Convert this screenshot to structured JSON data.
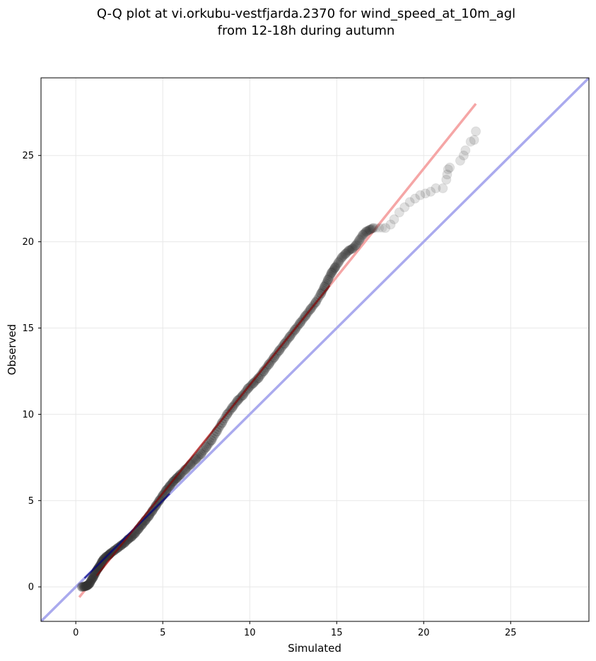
{
  "chart_data": {
    "type": "scatter",
    "title": "Q-Q plot at vi.orkubu-vestfjarda.2370 for wind_speed_at_10m_agl",
    "subtitle": "from 12-18h during autumn",
    "xlabel": "Simulated",
    "ylabel": "Observed",
    "xlim": [
      -2,
      29.5
    ],
    "ylim": [
      -2,
      29.5
    ],
    "xticks": [
      0,
      5,
      10,
      15,
      20,
      25
    ],
    "yticks": [
      0,
      5,
      10,
      15,
      20,
      25
    ],
    "grid": true,
    "legend": "none",
    "colors": {
      "points": "#333333",
      "identity_line": "#aaaaee",
      "fit_line": "#f5a6a6",
      "fit_line_dark": "#8b0000",
      "identity_line_dark": "#000080"
    },
    "identity_line": {
      "x": [
        -2,
        29.5
      ],
      "y": [
        -2,
        29.5
      ]
    },
    "fit_line": {
      "x": [
        0.2,
        23.0
      ],
      "y": [
        -0.6,
        28.0
      ]
    },
    "series": [
      {
        "values": [
          {
            "x": 0.35,
            "y": 0.0
          },
          {
            "x": 0.5,
            "y": 0.02
          },
          {
            "x": 0.6,
            "y": 0.05
          },
          {
            "x": 0.7,
            "y": 0.1
          },
          {
            "x": 0.8,
            "y": 0.2
          },
          {
            "x": 0.9,
            "y": 0.4
          },
          {
            "x": 1.0,
            "y": 0.55
          },
          {
            "x": 1.1,
            "y": 0.75
          },
          {
            "x": 1.2,
            "y": 0.95
          },
          {
            "x": 1.3,
            "y": 1.1
          },
          {
            "x": 1.4,
            "y": 1.25
          },
          {
            "x": 1.5,
            "y": 1.45
          },
          {
            "x": 1.6,
            "y": 1.6
          },
          {
            "x": 1.75,
            "y": 1.75
          },
          {
            "x": 1.9,
            "y": 1.85
          },
          {
            "x": 2.0,
            "y": 1.95
          },
          {
            "x": 2.2,
            "y": 2.1
          },
          {
            "x": 2.4,
            "y": 2.25
          },
          {
            "x": 2.6,
            "y": 2.4
          },
          {
            "x": 2.8,
            "y": 2.55
          },
          {
            "x": 3.0,
            "y": 2.75
          },
          {
            "x": 3.2,
            "y": 2.9
          },
          {
            "x": 3.4,
            "y": 3.1
          },
          {
            "x": 3.6,
            "y": 3.35
          },
          {
            "x": 3.8,
            "y": 3.6
          },
          {
            "x": 4.0,
            "y": 3.85
          },
          {
            "x": 4.2,
            "y": 4.1
          },
          {
            "x": 4.4,
            "y": 4.4
          },
          {
            "x": 4.6,
            "y": 4.7
          },
          {
            "x": 4.8,
            "y": 5.0
          },
          {
            "x": 5.0,
            "y": 5.3
          },
          {
            "x": 5.2,
            "y": 5.6
          },
          {
            "x": 5.4,
            "y": 5.85
          },
          {
            "x": 5.6,
            "y": 6.1
          },
          {
            "x": 5.8,
            "y": 6.3
          },
          {
            "x": 6.0,
            "y": 6.5
          },
          {
            "x": 6.3,
            "y": 6.8
          },
          {
            "x": 6.6,
            "y": 7.1
          },
          {
            "x": 6.9,
            "y": 7.4
          },
          {
            "x": 7.2,
            "y": 7.7
          },
          {
            "x": 7.5,
            "y": 8.1
          },
          {
            "x": 7.8,
            "y": 8.5
          },
          {
            "x": 8.1,
            "y": 9.0
          },
          {
            "x": 8.4,
            "y": 9.5
          },
          {
            "x": 8.7,
            "y": 10.0
          },
          {
            "x": 9.0,
            "y": 10.4
          },
          {
            "x": 9.3,
            "y": 10.8
          },
          {
            "x": 9.6,
            "y": 11.1
          },
          {
            "x": 9.9,
            "y": 11.5
          },
          {
            "x": 10.2,
            "y": 11.8
          },
          {
            "x": 10.5,
            "y": 12.1
          },
          {
            "x": 10.8,
            "y": 12.5
          },
          {
            "x": 11.1,
            "y": 12.9
          },
          {
            "x": 11.4,
            "y": 13.3
          },
          {
            "x": 11.7,
            "y": 13.7
          },
          {
            "x": 12.0,
            "y": 14.1
          },
          {
            "x": 12.3,
            "y": 14.5
          },
          {
            "x": 12.6,
            "y": 14.9
          },
          {
            "x": 12.9,
            "y": 15.3
          },
          {
            "x": 13.2,
            "y": 15.7
          },
          {
            "x": 13.5,
            "y": 16.1
          },
          {
            "x": 13.8,
            "y": 16.5
          },
          {
            "x": 14.1,
            "y": 17.0
          },
          {
            "x": 14.3,
            "y": 17.4
          },
          {
            "x": 14.5,
            "y": 17.8
          },
          {
            "x": 14.7,
            "y": 18.2
          },
          {
            "x": 14.9,
            "y": 18.5
          },
          {
            "x": 15.1,
            "y": 18.8
          },
          {
            "x": 15.3,
            "y": 19.1
          },
          {
            "x": 15.5,
            "y": 19.3
          },
          {
            "x": 15.7,
            "y": 19.5
          },
          {
            "x": 15.9,
            "y": 19.6
          },
          {
            "x": 16.1,
            "y": 19.8
          },
          {
            "x": 16.3,
            "y": 20.1
          },
          {
            "x": 16.5,
            "y": 20.4
          },
          {
            "x": 16.7,
            "y": 20.6
          },
          {
            "x": 16.9,
            "y": 20.7
          },
          {
            "x": 17.1,
            "y": 20.8
          },
          {
            "x": 17.8,
            "y": 20.8
          },
          {
            "x": 18.1,
            "y": 21.0
          },
          {
            "x": 18.3,
            "y": 21.3
          },
          {
            "x": 18.6,
            "y": 21.7
          },
          {
            "x": 18.9,
            "y": 22.0
          },
          {
            "x": 19.2,
            "y": 22.3
          },
          {
            "x": 19.5,
            "y": 22.5
          },
          {
            "x": 19.8,
            "y": 22.7
          },
          {
            "x": 20.1,
            "y": 22.8
          },
          {
            "x": 20.4,
            "y": 22.9
          },
          {
            "x": 20.7,
            "y": 23.1
          },
          {
            "x": 21.1,
            "y": 23.1
          },
          {
            "x": 21.3,
            "y": 23.6
          },
          {
            "x": 21.35,
            "y": 23.9
          },
          {
            "x": 21.4,
            "y": 24.2
          },
          {
            "x": 21.5,
            "y": 24.3
          },
          {
            "x": 22.1,
            "y": 24.7
          },
          {
            "x": 22.3,
            "y": 25.0
          },
          {
            "x": 22.4,
            "y": 25.3
          },
          {
            "x": 22.7,
            "y": 25.8
          },
          {
            "x": 22.9,
            "y": 25.9
          },
          {
            "x": 23.0,
            "y": 26.4
          }
        ]
      }
    ]
  }
}
